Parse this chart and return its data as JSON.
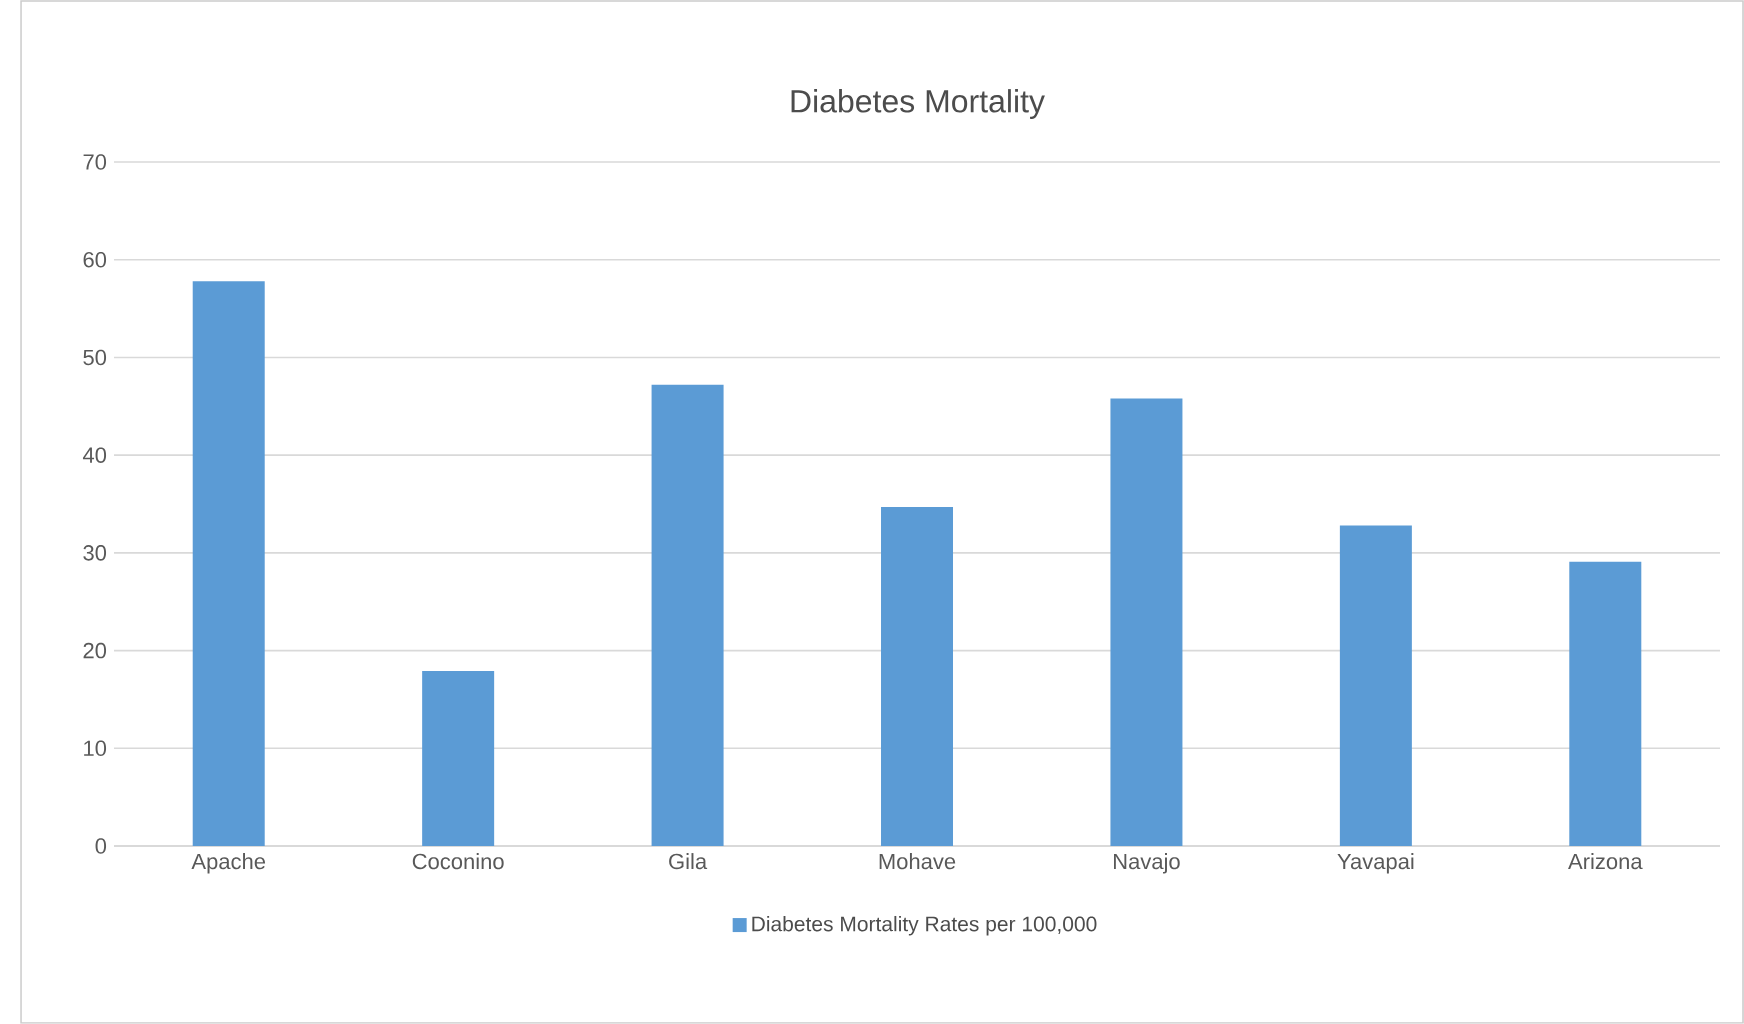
{
  "chart_data": {
    "type": "bar",
    "title": "Diabetes Mortality",
    "categories": [
      "Apache",
      "Coconino",
      "Gila",
      "Mohave",
      "Navajo",
      "Yavapai",
      "Arizona"
    ],
    "series": [
      {
        "name": "Diabetes Mortality Rates per 100,000",
        "color": "#5b9bd5",
        "values": [
          57.8,
          17.9,
          47.2,
          34.7,
          45.8,
          32.8,
          29.1
        ]
      }
    ],
    "ylim": [
      0,
      70
    ],
    "yticks": [
      0,
      10,
      20,
      30,
      40,
      50,
      60,
      70
    ],
    "grid": "y",
    "legend": "bottom"
  }
}
